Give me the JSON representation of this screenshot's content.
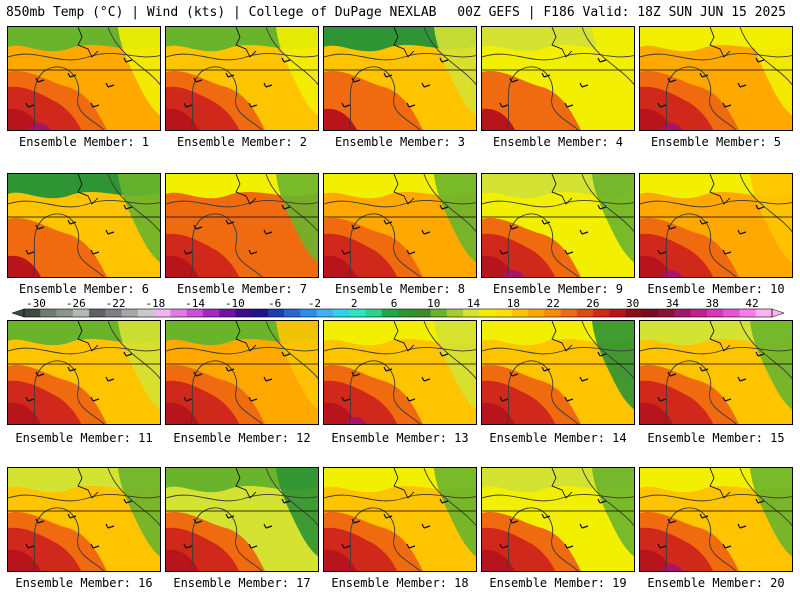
{
  "header": {
    "left": "850mb Temp (°C) | Wind (kts) | College of DuPage NEXLAB",
    "right": "00Z GEFS | F186 Valid: 18Z SUN JUN 15 2025"
  },
  "colorbar": {
    "ticks": [
      "-30",
      "-26",
      "-22",
      "-18",
      "-14",
      "-10",
      "-6",
      "-2",
      "2",
      "6",
      "10",
      "14",
      "18",
      "22",
      "26",
      "30",
      "34",
      "38",
      "42"
    ],
    "colors": [
      "#3c4a41",
      "#6e7d72",
      "#8a958c",
      "#b1b9b3",
      "#616168",
      "#7e7e86",
      "#a6a6ad",
      "#c8c8ce",
      "#f2b3f0",
      "#e07be6",
      "#c84fd8",
      "#a328c4",
      "#6e12a6",
      "#3d0a8c",
      "#1e1490",
      "#1e3cb8",
      "#2a64dc",
      "#2e8cf0",
      "#38b4f5",
      "#30d2e6",
      "#2ae6c2",
      "#2cd28c",
      "#1fa84a",
      "#2e9434",
      "#3c8a2c",
      "#6ab42c",
      "#a4cc2c",
      "#d4e232",
      "#f2f000",
      "#ffe000",
      "#ffc400",
      "#ffa800",
      "#ff8a00",
      "#f06a10",
      "#e04a12",
      "#d0281a",
      "#b8141c",
      "#900c18",
      "#780a22",
      "#8c1038",
      "#a8146a",
      "#c4208c",
      "#dc34b4",
      "#f050d4",
      "#ff7ae8",
      "#ffb4f2"
    ]
  },
  "panels": [
    {
      "label": "Ensemble Member: 1"
    },
    {
      "label": "Ensemble Member: 2"
    },
    {
      "label": "Ensemble Member: 3"
    },
    {
      "label": "Ensemble Member: 4"
    },
    {
      "label": "Ensemble Member: 5"
    },
    {
      "label": "Ensemble Member: 6"
    },
    {
      "label": "Ensemble Member: 7"
    },
    {
      "label": "Ensemble Member: 8"
    },
    {
      "label": "Ensemble Member: 9"
    },
    {
      "label": "Ensemble Member: 10"
    },
    {
      "label": "Ensemble Member: 11"
    },
    {
      "label": "Ensemble Member: 12"
    },
    {
      "label": "Ensemble Member: 13"
    },
    {
      "label": "Ensemble Member: 14"
    },
    {
      "label": "Ensemble Member: 15"
    },
    {
      "label": "Ensemble Member: 16"
    },
    {
      "label": "Ensemble Member: 17"
    },
    {
      "label": "Ensemble Member: 18"
    },
    {
      "label": "Ensemble Member: 19"
    },
    {
      "label": "Ensemble Member: 20"
    }
  ],
  "map_colors": {
    "dark_green": "#2e9434",
    "green": "#6ab42c",
    "yellow_green": "#d4e232",
    "yellow": "#f2f000",
    "gold": "#ffc400",
    "orange": "#ffa800",
    "dark_orange": "#f06a10",
    "red": "#d0281a",
    "dark_red": "#b8141c",
    "magenta": "#a8146a"
  }
}
